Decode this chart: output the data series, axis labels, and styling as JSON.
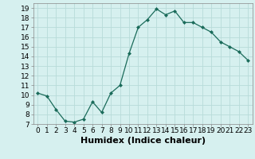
{
  "x": [
    0,
    1,
    2,
    3,
    4,
    5,
    6,
    7,
    8,
    9,
    10,
    11,
    12,
    13,
    14,
    15,
    16,
    17,
    18,
    19,
    20,
    21,
    22,
    23
  ],
  "y": [
    10.2,
    9.9,
    8.5,
    7.3,
    7.2,
    7.5,
    9.3,
    8.2,
    10.2,
    11.0,
    14.3,
    17.0,
    17.8,
    18.9,
    18.3,
    18.7,
    17.5,
    17.5,
    17.0,
    16.5,
    15.5,
    15.0,
    14.5,
    13.6
  ],
  "xlabel": "Humidex (Indice chaleur)",
  "ylim": [
    7,
    19.5
  ],
  "xlim": [
    -0.5,
    23.5
  ],
  "yticks": [
    7,
    8,
    9,
    10,
    11,
    12,
    13,
    14,
    15,
    16,
    17,
    18,
    19
  ],
  "xticks": [
    0,
    1,
    2,
    3,
    4,
    5,
    6,
    7,
    8,
    9,
    10,
    11,
    12,
    13,
    14,
    15,
    16,
    17,
    18,
    19,
    20,
    21,
    22,
    23
  ],
  "line_color": "#1a6b5a",
  "marker": "D",
  "marker_size": 2,
  "bg_color": "#d6f0ef",
  "grid_color": "#b8dbd9",
  "xlabel_fontsize": 8,
  "tick_fontsize": 6.5
}
